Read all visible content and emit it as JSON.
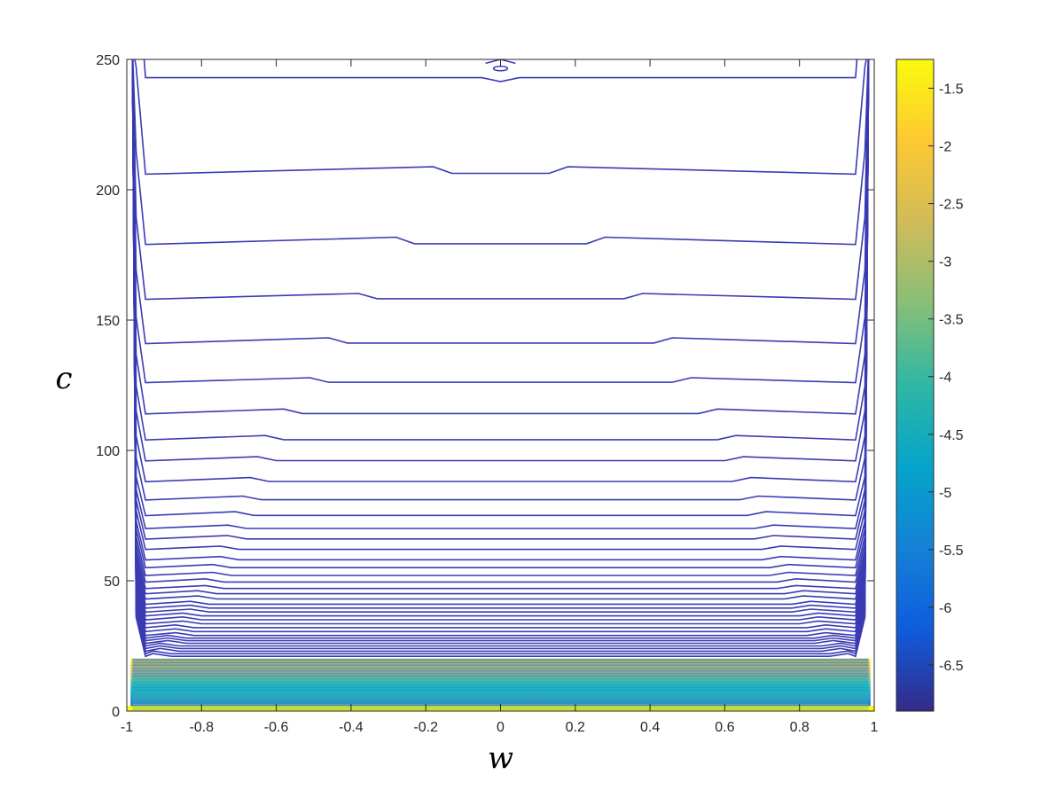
{
  "chart_data": {
    "type": "contour",
    "xlabel": "w",
    "ylabel": "c",
    "xlim": [
      -1,
      1
    ],
    "ylim": [
      0,
      250
    ],
    "x_ticks": [
      -1,
      -0.8,
      -0.6,
      -0.4,
      -0.2,
      0,
      0.2,
      0.4,
      0.6,
      0.8,
      1
    ],
    "x_tick_labels": [
      "-1",
      "-0.8",
      "-0.6",
      "-0.4",
      "-0.2",
      "0",
      "0.2",
      "0.4",
      "0.6",
      "0.8",
      "1"
    ],
    "y_ticks": [
      0,
      50,
      100,
      150,
      200,
      250
    ],
    "y_tick_labels": [
      "0",
      "50",
      "100",
      "150",
      "200",
      "250"
    ],
    "colorbar": {
      "colormap": "parula",
      "limits": [
        -6.9,
        -1.25
      ],
      "ticks": [
        -6.5,
        -6,
        -5.5,
        -5,
        -4.5,
        -4,
        -3.5,
        -3,
        -2.5,
        -2,
        -1.5
      ],
      "tick_labels": [
        "-6.5",
        "-6",
        "-5.5",
        "-5",
        "-4.5",
        "-4",
        "-3.5",
        "-3",
        "-2.5",
        "-2",
        "-1.5"
      ],
      "colors": [
        "#352a87",
        "#0f5cdd",
        "#1481d6",
        "#06a4ca",
        "#2eb7a4",
        "#87bf77",
        "#d1bb59",
        "#fec832",
        "#f9fb0e"
      ]
    },
    "contour_levels_c": [
      243,
      206,
      179,
      158,
      141,
      126,
      114,
      104,
      96,
      88,
      81,
      75,
      70,
      66,
      62,
      58,
      55,
      52,
      49.5,
      47,
      45,
      43,
      41,
      39.5,
      38,
      36.5,
      35,
      33.5,
      32,
      30.5,
      29,
      28,
      27,
      26,
      25,
      24,
      23,
      22,
      21
    ],
    "plateau_half_width_w": [
      0.02,
      0.15,
      0.25,
      0.35,
      0.43,
      0.48,
      0.55,
      0.6,
      0.62,
      0.64,
      0.66,
      0.68,
      0.7,
      0.7,
      0.72,
      0.72,
      0.74,
      0.74,
      0.76,
      0.76,
      0.78,
      0.78,
      0.8,
      0.8,
      0.8,
      0.82,
      0.82,
      0.82,
      0.84,
      0.84,
      0.84,
      0.86,
      0.86,
      0.86,
      0.88,
      0.88,
      0.88,
      0.9,
      0.9
    ],
    "plateau_step_c": [
      -1.5,
      3.0,
      3.0,
      2.0,
      2.0,
      1.5,
      1.5,
      1.2,
      1.0,
      1.0,
      0.8,
      0.8,
      0.6,
      0.6,
      0.5,
      0.5,
      0.4,
      0.4,
      0.4,
      0.3,
      0.3,
      0.3,
      0.2,
      0.2,
      0.2,
      0.2,
      0.2,
      0.1,
      0.1,
      0.1,
      0.1,
      0.1,
      0.1,
      0.1,
      0.1,
      0.1,
      0.1,
      0.1,
      0.1
    ],
    "inner_edge_w": 0.95,
    "outer_edge_w": 0.985,
    "dense_band_c": [
      0,
      20
    ],
    "bottom_band_c": [
      0,
      2
    ],
    "colors": {
      "contour_line": "#3a3bb3",
      "background": "#ffffff",
      "axes": "#262626"
    }
  }
}
